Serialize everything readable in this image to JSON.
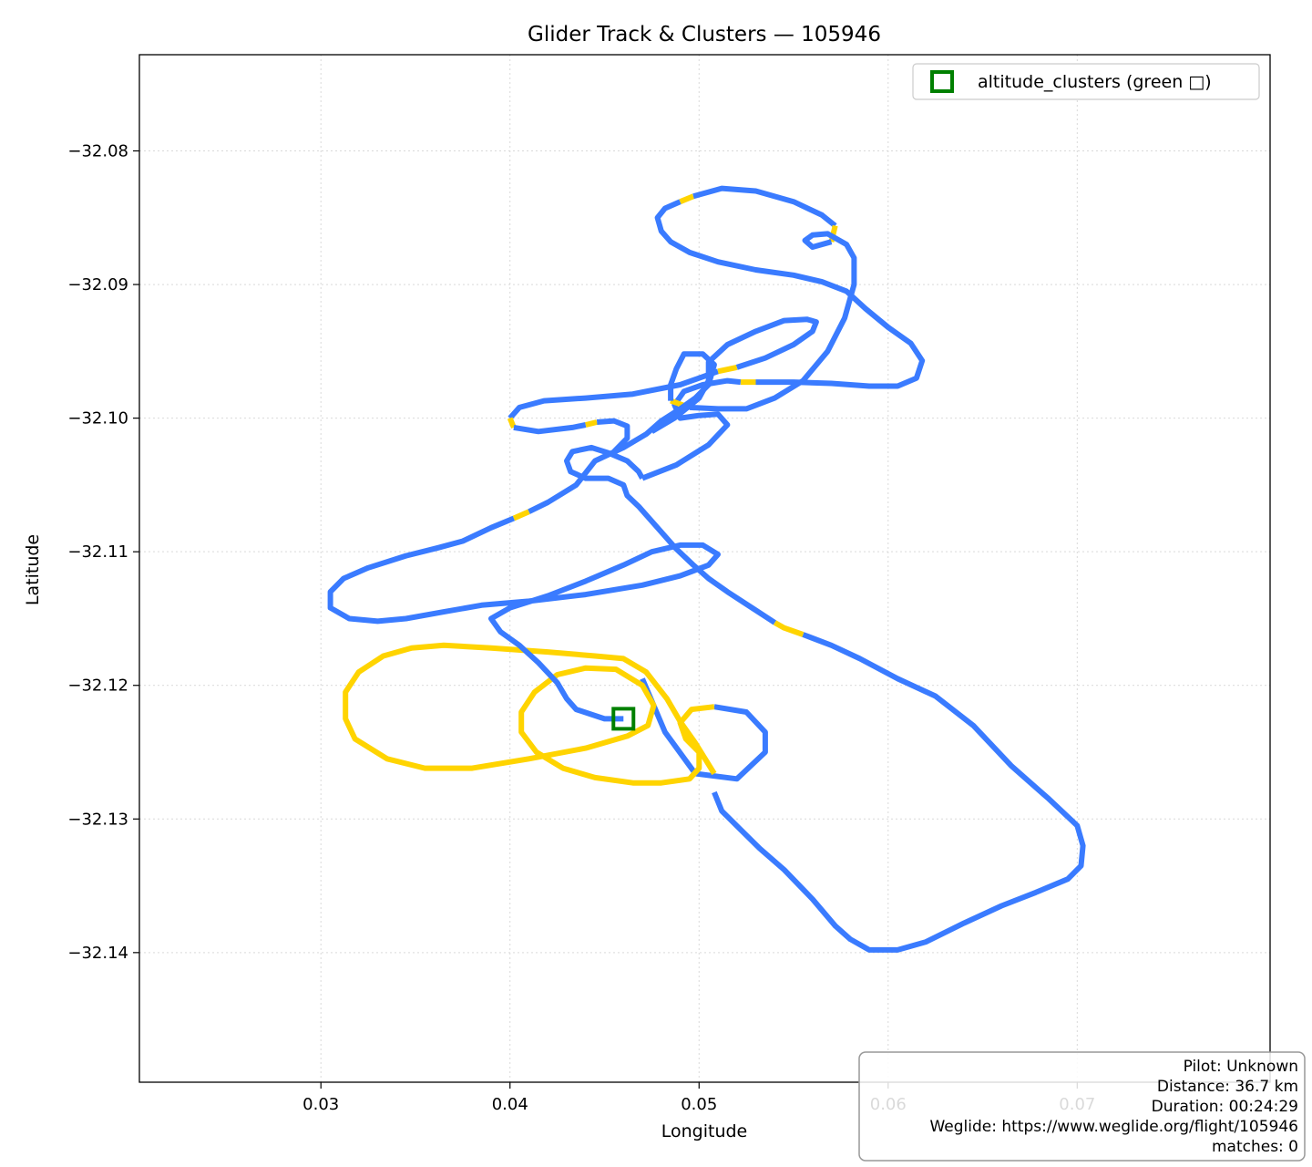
{
  "chart_data": {
    "type": "line",
    "title": "Glider Track & Clusters — 105946",
    "xlabel": "Longitude",
    "ylabel": "Latitude",
    "xlim": [
      0.0204,
      0.0802
    ],
    "ylim": [
      -32.1497,
      -32.0728
    ],
    "xticks": [
      0.03,
      0.04,
      0.05,
      0.06,
      0.07
    ],
    "yticks": [
      -32.08,
      -32.09,
      -32.1,
      -32.11,
      -32.12,
      -32.13,
      -32.14
    ],
    "xtick_labels": [
      "0.03",
      "0.04",
      "0.05",
      "0.06",
      "0.07"
    ],
    "ytick_labels": [
      "−32.08",
      "−32.09",
      "−32.10",
      "−32.11",
      "−32.12",
      "−32.13",
      "−32.14"
    ],
    "grid": true,
    "colors": {
      "climb": "#FFD400",
      "glide": "#3A7BFF",
      "cluster": "#008000"
    },
    "track_segments": [
      {
        "class": "glide",
        "points": [
          [
            0.047,
            -32.1195
          ],
          [
            0.0482,
            -32.1235
          ],
          [
            0.0498,
            -32.1266
          ],
          [
            0.052,
            -32.127
          ],
          [
            0.0535,
            -32.125
          ],
          [
            0.0535,
            -32.1235
          ],
          [
            0.0525,
            -32.122
          ],
          [
            0.0508,
            -32.1216
          ]
        ]
      },
      {
        "class": "climb",
        "points": [
          [
            0.0508,
            -32.1216
          ],
          [
            0.0496,
            -32.1218
          ],
          [
            0.049,
            -32.1228
          ],
          [
            0.0493,
            -32.124
          ],
          [
            0.05,
            -32.125
          ],
          [
            0.05,
            -32.1262
          ],
          [
            0.0495,
            -32.127
          ],
          [
            0.048,
            -32.1273
          ],
          [
            0.0465,
            -32.1273
          ],
          [
            0.0445,
            -32.1269
          ],
          [
            0.0428,
            -32.1262
          ],
          [
            0.0414,
            -32.125
          ],
          [
            0.0406,
            -32.1235
          ],
          [
            0.0406,
            -32.122
          ],
          [
            0.0413,
            -32.1205
          ],
          [
            0.0425,
            -32.1192
          ],
          [
            0.044,
            -32.1187
          ],
          [
            0.0456,
            -32.1188
          ],
          [
            0.047,
            -32.12
          ],
          [
            0.0476,
            -32.1215
          ],
          [
            0.0473,
            -32.123
          ],
          [
            0.0462,
            -32.1238
          ],
          [
            0.044,
            -32.1247
          ],
          [
            0.041,
            -32.1255
          ],
          [
            0.038,
            -32.1262
          ],
          [
            0.0355,
            -32.1262
          ],
          [
            0.0335,
            -32.1255
          ],
          [
            0.0318,
            -32.124
          ],
          [
            0.0313,
            -32.1225
          ],
          [
            0.0313,
            -32.1205
          ],
          [
            0.032,
            -32.119
          ],
          [
            0.0333,
            -32.1178
          ],
          [
            0.0348,
            -32.1172
          ],
          [
            0.0365,
            -32.117
          ],
          [
            0.039,
            -32.1172
          ],
          [
            0.042,
            -32.1175
          ],
          [
            0.0445,
            -32.1178
          ],
          [
            0.046,
            -32.118
          ],
          [
            0.0472,
            -32.119
          ],
          [
            0.0483,
            -32.121
          ],
          [
            0.049,
            -32.1227
          ],
          [
            0.0498,
            -32.1243
          ],
          [
            0.0508,
            -32.1266
          ]
        ]
      },
      {
        "class": "glide",
        "points": [
          [
            0.0508,
            -32.128
          ],
          [
            0.0512,
            -32.1294
          ],
          [
            0.0522,
            -32.1308
          ],
          [
            0.0532,
            -32.1322
          ],
          [
            0.0545,
            -32.1338
          ],
          [
            0.056,
            -32.136
          ],
          [
            0.0572,
            -32.138
          ],
          [
            0.058,
            -32.139
          ],
          [
            0.059,
            -32.1398
          ],
          [
            0.0605,
            -32.1398
          ],
          [
            0.062,
            -32.1392
          ],
          [
            0.064,
            -32.1378
          ],
          [
            0.066,
            -32.1365
          ],
          [
            0.0678,
            -32.1355
          ],
          [
            0.0695,
            -32.1345
          ],
          [
            0.0702,
            -32.1335
          ],
          [
            0.0703,
            -32.132
          ],
          [
            0.07,
            -32.1305
          ],
          [
            0.0685,
            -32.1285
          ],
          [
            0.0665,
            -32.126
          ],
          [
            0.0645,
            -32.123
          ],
          [
            0.0625,
            -32.1208
          ],
          [
            0.0605,
            -32.1195
          ],
          [
            0.0585,
            -32.118
          ],
          [
            0.057,
            -32.117
          ],
          [
            0.0555,
            -32.1162
          ]
        ]
      },
      {
        "class": "climb",
        "points": [
          [
            0.0555,
            -32.1162
          ],
          [
            0.0545,
            -32.1157
          ],
          [
            0.054,
            -32.1153
          ]
        ]
      },
      {
        "class": "glide",
        "points": [
          [
            0.054,
            -32.1153
          ],
          [
            0.0528,
            -32.1142
          ],
          [
            0.0515,
            -32.113
          ],
          [
            0.0505,
            -32.112
          ],
          [
            0.0497,
            -32.111
          ],
          [
            0.0488,
            -32.1098
          ],
          [
            0.0478,
            -32.1082
          ],
          [
            0.0468,
            -32.1066
          ],
          [
            0.0462,
            -32.1058
          ],
          [
            0.046,
            -32.105
          ],
          [
            0.0452,
            -32.1045
          ],
          [
            0.044,
            -32.1045
          ],
          [
            0.0432,
            -32.104
          ],
          [
            0.043,
            -32.1032
          ],
          [
            0.0433,
            -32.1025
          ],
          [
            0.0443,
            -32.1022
          ],
          [
            0.0452,
            -32.1026
          ],
          [
            0.0462,
            -32.1032
          ],
          [
            0.0468,
            -32.104
          ],
          [
            0.047,
            -32.1045
          ]
        ]
      },
      {
        "class": "glide",
        "points": [
          [
            0.047,
            -32.1045
          ],
          [
            0.0488,
            -32.1035
          ],
          [
            0.0505,
            -32.102
          ],
          [
            0.0515,
            -32.1005
          ],
          [
            0.051,
            -32.0997
          ],
          [
            0.05,
            -32.0998
          ],
          [
            0.049,
            -32.1
          ],
          [
            0.0487,
            -32.099
          ],
          [
            0.0492,
            -32.098
          ],
          [
            0.0502,
            -32.0975
          ],
          [
            0.0515,
            -32.0972
          ],
          [
            0.0522,
            -32.0973
          ]
        ]
      },
      {
        "class": "climb",
        "points": [
          [
            0.0522,
            -32.0973
          ],
          [
            0.053,
            -32.0973
          ]
        ]
      },
      {
        "class": "glide",
        "points": [
          [
            0.053,
            -32.0973
          ],
          [
            0.055,
            -32.0973
          ],
          [
            0.057,
            -32.0974
          ],
          [
            0.059,
            -32.0976
          ],
          [
            0.0605,
            -32.0976
          ],
          [
            0.0615,
            -32.097
          ],
          [
            0.0618,
            -32.0957
          ],
          [
            0.0612,
            -32.0944
          ],
          [
            0.06,
            -32.0932
          ],
          [
            0.0588,
            -32.0918
          ],
          [
            0.0578,
            -32.0905
          ],
          [
            0.0565,
            -32.0898
          ],
          [
            0.055,
            -32.0893
          ],
          [
            0.053,
            -32.0889
          ],
          [
            0.051,
            -32.0883
          ],
          [
            0.0495,
            -32.0876
          ],
          [
            0.0485,
            -32.0868
          ],
          [
            0.048,
            -32.086
          ],
          [
            0.0478,
            -32.085
          ],
          [
            0.0482,
            -32.0843
          ],
          [
            0.049,
            -32.0838
          ]
        ]
      },
      {
        "class": "climb",
        "points": [
          [
            0.049,
            -32.0838
          ],
          [
            0.0497,
            -32.0834
          ]
        ]
      },
      {
        "class": "glide",
        "points": [
          [
            0.0497,
            -32.0834
          ],
          [
            0.0512,
            -32.0828
          ],
          [
            0.053,
            -32.083
          ],
          [
            0.055,
            -32.0838
          ],
          [
            0.0565,
            -32.0848
          ],
          [
            0.0572,
            -32.0856
          ]
        ]
      },
      {
        "class": "climb",
        "points": [
          [
            0.0572,
            -32.0856
          ],
          [
            0.057,
            -32.0868
          ]
        ]
      },
      {
        "class": "glide",
        "points": [
          [
            0.057,
            -32.0868
          ],
          [
            0.056,
            -32.0872
          ],
          [
            0.0556,
            -32.0867
          ],
          [
            0.056,
            -32.0863
          ],
          [
            0.0568,
            -32.0862
          ],
          [
            0.0578,
            -32.087
          ],
          [
            0.0582,
            -32.088
          ],
          [
            0.0582,
            -32.09
          ],
          [
            0.0577,
            -32.0925
          ],
          [
            0.0568,
            -32.095
          ],
          [
            0.0555,
            -32.0972
          ],
          [
            0.054,
            -32.0985
          ],
          [
            0.0525,
            -32.0993
          ],
          [
            0.051,
            -32.0993
          ],
          [
            0.0495,
            -32.0992
          ]
        ]
      },
      {
        "class": "climb",
        "points": [
          [
            0.0495,
            -32.0992
          ],
          [
            0.0485,
            -32.0987
          ]
        ]
      },
      {
        "class": "glide",
        "points": [
          [
            0.0485,
            -32.0987
          ],
          [
            0.0485,
            -32.0975
          ],
          [
            0.0488,
            -32.0963
          ],
          [
            0.0492,
            -32.0952
          ],
          [
            0.0502,
            -32.0952
          ],
          [
            0.0508,
            -32.096
          ],
          [
            0.0505,
            -32.0975
          ],
          [
            0.0498,
            -32.0985
          ],
          [
            0.049,
            -32.0993
          ],
          [
            0.048,
            -32.1002
          ],
          [
            0.0472,
            -32.1012
          ],
          [
            0.046,
            -32.1022
          ],
          [
            0.0445,
            -32.1032
          ],
          [
            0.0435,
            -32.105
          ],
          [
            0.042,
            -32.1063
          ],
          [
            0.041,
            -32.107
          ]
        ]
      },
      {
        "class": "climb",
        "points": [
          [
            0.041,
            -32.107
          ],
          [
            0.0402,
            -32.1075
          ]
        ]
      },
      {
        "class": "glide",
        "points": [
          [
            0.0402,
            -32.1075
          ],
          [
            0.039,
            -32.1082
          ],
          [
            0.0375,
            -32.1092
          ],
          [
            0.0362,
            -32.1097
          ],
          [
            0.0345,
            -32.1103
          ],
          [
            0.0325,
            -32.1112
          ],
          [
            0.0312,
            -32.112
          ],
          [
            0.0305,
            -32.113
          ],
          [
            0.0305,
            -32.1142
          ],
          [
            0.0315,
            -32.115
          ],
          [
            0.033,
            -32.1152
          ],
          [
            0.0345,
            -32.115
          ],
          [
            0.0365,
            -32.1145
          ],
          [
            0.0385,
            -32.114
          ],
          [
            0.041,
            -32.1137
          ],
          [
            0.044,
            -32.1132
          ],
          [
            0.047,
            -32.1125
          ],
          [
            0.049,
            -32.1118
          ],
          [
            0.0505,
            -32.111
          ],
          [
            0.051,
            -32.1102
          ],
          [
            0.0502,
            -32.1095
          ],
          [
            0.049,
            -32.1095
          ],
          [
            0.0475,
            -32.11
          ],
          [
            0.046,
            -32.111
          ],
          [
            0.044,
            -32.1122
          ],
          [
            0.042,
            -32.1133
          ],
          [
            0.04,
            -32.1142
          ],
          [
            0.039,
            -32.115
          ],
          [
            0.0395,
            -32.116
          ],
          [
            0.0405,
            -32.117
          ],
          [
            0.0415,
            -32.1183
          ],
          [
            0.0425,
            -32.1198
          ],
          [
            0.043,
            -32.121
          ],
          [
            0.0435,
            -32.1218
          ],
          [
            0.045,
            -32.1225
          ],
          [
            0.046,
            -32.1225
          ]
        ]
      },
      {
        "class": "glide",
        "points": [
          [
            0.04,
            -32.1
          ],
          [
            0.0405,
            -32.0992
          ],
          [
            0.0418,
            -32.0987
          ],
          [
            0.044,
            -32.0985
          ],
          [
            0.0465,
            -32.0982
          ],
          [
            0.049,
            -32.0975
          ],
          [
            0.051,
            -32.0965
          ]
        ]
      },
      {
        "class": "climb",
        "points": [
          [
            0.051,
            -32.0965
          ],
          [
            0.052,
            -32.0962
          ]
        ]
      },
      {
        "class": "glide",
        "points": [
          [
            0.052,
            -32.0962
          ],
          [
            0.0535,
            -32.0955
          ],
          [
            0.055,
            -32.0945
          ],
          [
            0.056,
            -32.0935
          ],
          [
            0.0562,
            -32.0928
          ],
          [
            0.0557,
            -32.0926
          ],
          [
            0.0545,
            -32.0927
          ],
          [
            0.053,
            -32.0935
          ],
          [
            0.0515,
            -32.0945
          ],
          [
            0.0505,
            -32.0958
          ],
          [
            0.0505,
            -32.0972
          ],
          [
            0.05,
            -32.0985
          ],
          [
            0.0487,
            -32.1
          ],
          [
            0.0475,
            -32.101
          ]
        ]
      }
    ],
    "start_connector": {
      "class": "climb",
      "points": [
        [
          0.04,
          -32.1
        ],
        [
          0.0402,
          -32.1007
        ]
      ]
    },
    "start_connector_2": {
      "class": "glide",
      "points": [
        [
          0.0402,
          -32.1007
        ],
        [
          0.0415,
          -32.101
        ],
        [
          0.0433,
          -32.1007
        ],
        [
          0.044,
          -32.1005
        ]
      ]
    },
    "start_connector_3": {
      "class": "climb",
      "points": [
        [
          0.044,
          -32.1005
        ],
        [
          0.0446,
          -32.1003
        ]
      ]
    },
    "start_connector_4": {
      "class": "glide",
      "points": [
        [
          0.0446,
          -32.1003
        ],
        [
          0.0455,
          -32.1002
        ],
        [
          0.0462,
          -32.1006
        ],
        [
          0.0462,
          -32.1015
        ],
        [
          0.0455,
          -32.1025
        ]
      ]
    },
    "clusters": [
      {
        "name": "altitude_clusters",
        "x": 0.046,
        "y": -32.1225
      }
    ],
    "legend": {
      "placement": "top-right",
      "entries": [
        "altitude_clusters (green □)"
      ]
    },
    "info_box": {
      "placement": "bottom-right",
      "lines": [
        "Pilot: Unknown",
        "Distance: 36.7 km",
        "Duration: 00:24:29",
        "Weglide: https://www.weglide.org/flight/105946",
        "matches: 0"
      ]
    }
  }
}
